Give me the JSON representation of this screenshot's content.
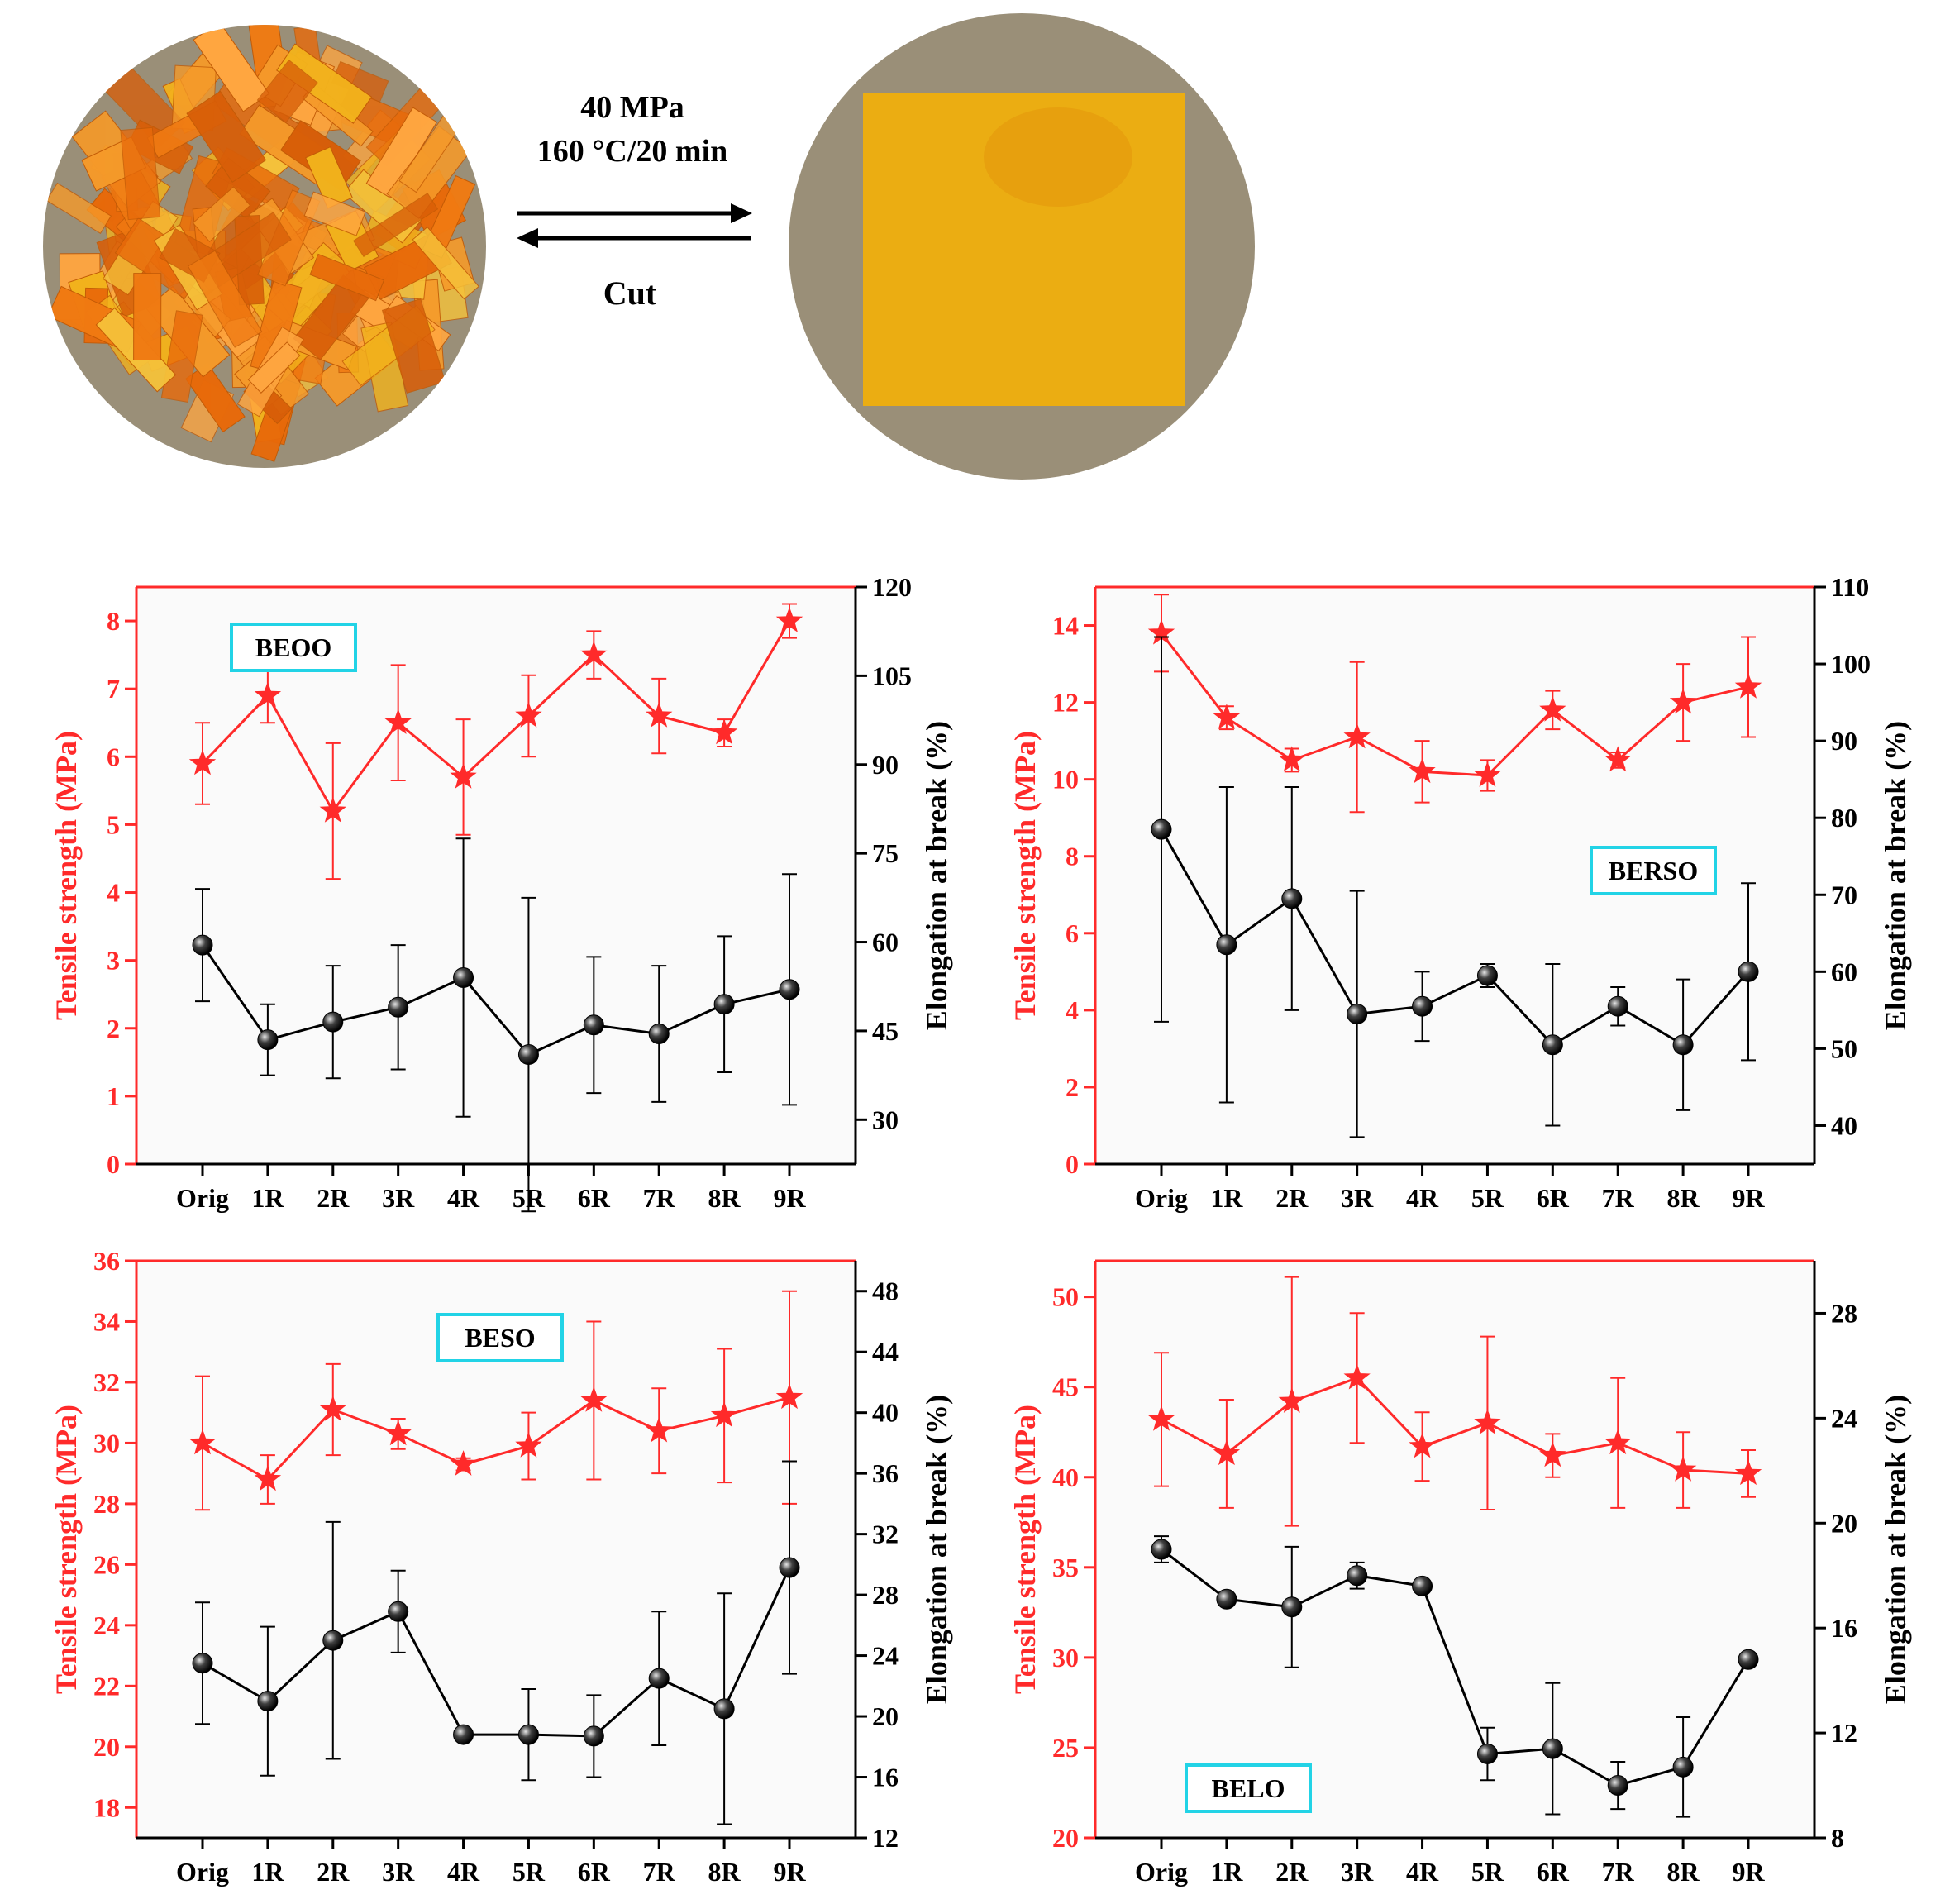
{
  "process": {
    "forward_line1": "40 MPa",
    "forward_line2": "160 °C/20 min",
    "reverse_label": "Cut"
  },
  "colors": {
    "strength": "#ff2a2a",
    "elongation": "#000000",
    "label_box": "#22d3e6",
    "photo_background": "#9a8f78",
    "film": "#e8a80c",
    "fragments": "#f07a12"
  },
  "chart_data": [
    {
      "type": "line",
      "name": "BEOO",
      "legend_position": "top-left",
      "categories": [
        "Orig",
        "1R",
        "2R",
        "3R",
        "4R",
        "5R",
        "6R",
        "7R",
        "8R",
        "9R"
      ],
      "ylabel_left": "Tensile strength (MPa)",
      "ylabel_right": "Elongation at break (%)",
      "ylim_left": [
        0,
        8.5
      ],
      "yticks_left": [
        0,
        1,
        2,
        3,
        4,
        5,
        6,
        7,
        8
      ],
      "ylim_right": [
        22.5,
        120
      ],
      "yticks_right": [
        30,
        45,
        60,
        75,
        90,
        105,
        120
      ],
      "series": [
        {
          "axis": "left",
          "marker": "star",
          "values": [
            5.9,
            6.9,
            5.2,
            6.5,
            5.7,
            6.6,
            7.5,
            6.6,
            6.35,
            8.0
          ],
          "errors": [
            0.6,
            0.4,
            1.0,
            0.85,
            0.85,
            0.6,
            0.35,
            0.55,
            0.2,
            0.25
          ]
        },
        {
          "axis": "right",
          "marker": "sphere",
          "values": [
            59.5,
            43.5,
            46.5,
            49.0,
            54.0,
            41.0,
            46.0,
            44.5,
            49.5,
            52.0
          ],
          "errors": [
            9.5,
            6.0,
            9.5,
            10.5,
            23.5,
            26.5,
            11.5,
            11.5,
            11.5,
            19.5
          ]
        }
      ]
    },
    {
      "type": "line",
      "name": "BERSO",
      "legend_position": "center-right",
      "categories": [
        "Orig",
        "1R",
        "2R",
        "3R",
        "4R",
        "5R",
        "6R",
        "7R",
        "8R",
        "9R"
      ],
      "ylabel_left": "Tensile strength (MPa)",
      "ylabel_right": "Elongation at break (%)",
      "ylim_left": [
        0,
        15
      ],
      "yticks_left": [
        0,
        2,
        4,
        6,
        8,
        10,
        12,
        14
      ],
      "ylim_right": [
        35,
        110
      ],
      "yticks_right": [
        40,
        50,
        60,
        70,
        80,
        90,
        100,
        110
      ],
      "series": [
        {
          "axis": "left",
          "marker": "star",
          "values": [
            13.8,
            11.6,
            10.5,
            11.1,
            10.2,
            10.1,
            11.8,
            10.5,
            12.0,
            12.4
          ],
          "errors": [
            1.0,
            0.3,
            0.3,
            1.95,
            0.8,
            0.4,
            0.5,
            0.2,
            1.0,
            1.3
          ]
        },
        {
          "axis": "right",
          "marker": "sphere",
          "values": [
            78.5,
            63.5,
            69.5,
            54.5,
            55.5,
            59.5,
            50.5,
            55.5,
            50.5,
            60.0
          ],
          "errors": [
            25.0,
            20.5,
            14.5,
            16.0,
            4.5,
            1.5,
            10.5,
            2.5,
            8.5,
            11.5
          ]
        }
      ]
    },
    {
      "type": "line",
      "name": "BESO",
      "legend_position": "top-center",
      "categories": [
        "Orig",
        "1R",
        "2R",
        "3R",
        "4R",
        "5R",
        "6R",
        "7R",
        "8R",
        "9R"
      ],
      "ylabel_left": "Tensile strength (MPa)",
      "ylabel_right": "Elongation at break (%)",
      "ylim_left": [
        17,
        36
      ],
      "yticks_left": [
        18,
        20,
        22,
        24,
        26,
        28,
        30,
        32,
        34,
        36
      ],
      "ylim_right": [
        12,
        50
      ],
      "yticks_right": [
        12,
        16,
        20,
        24,
        28,
        32,
        36,
        40,
        44,
        48
      ],
      "series": [
        {
          "axis": "left",
          "marker": "star",
          "values": [
            30.0,
            28.8,
            31.1,
            30.3,
            29.3,
            29.9,
            31.4,
            30.4,
            30.9,
            31.5
          ],
          "errors": [
            2.2,
            0.8,
            1.5,
            0.5,
            0.2,
            1.1,
            2.6,
            1.4,
            2.2,
            3.5
          ]
        },
        {
          "axis": "right",
          "marker": "sphere",
          "values": [
            23.5,
            21.0,
            25.0,
            26.9,
            18.8,
            18.8,
            18.7,
            22.5,
            20.5,
            29.8
          ],
          "errors": [
            4.0,
            4.9,
            7.8,
            2.7,
            0,
            3.0,
            2.7,
            4.4,
            7.6,
            7.0
          ]
        }
      ]
    },
    {
      "type": "line",
      "name": "BELO",
      "legend_position": "bottom-left",
      "categories": [
        "Orig",
        "1R",
        "2R",
        "3R",
        "4R",
        "5R",
        "6R",
        "7R",
        "8R",
        "9R"
      ],
      "ylabel_left": "Tensile strength (MPa)",
      "ylabel_right": "Elongation at break (%)",
      "ylim_left": [
        20,
        52
      ],
      "yticks_left": [
        20,
        25,
        30,
        35,
        40,
        45,
        50
      ],
      "ylim_right": [
        8,
        30
      ],
      "yticks_right": [
        8,
        12,
        16,
        20,
        24,
        28
      ],
      "series": [
        {
          "axis": "left",
          "marker": "star",
          "values": [
            43.2,
            41.3,
            44.2,
            45.5,
            41.7,
            43.0,
            41.2,
            41.9,
            40.4,
            40.2
          ],
          "errors": [
            3.7,
            3.0,
            6.9,
            3.6,
            1.9,
            4.8,
            1.2,
            3.6,
            2.1,
            1.3
          ]
        },
        {
          "axis": "right",
          "marker": "sphere",
          "values": [
            19.0,
            17.1,
            16.8,
            18.0,
            17.6,
            11.2,
            11.4,
            10.0,
            10.7,
            14.8
          ],
          "errors": [
            0.5,
            0.2,
            2.3,
            0.5,
            0,
            1.0,
            2.5,
            0.9,
            1.9,
            0
          ]
        }
      ]
    }
  ]
}
